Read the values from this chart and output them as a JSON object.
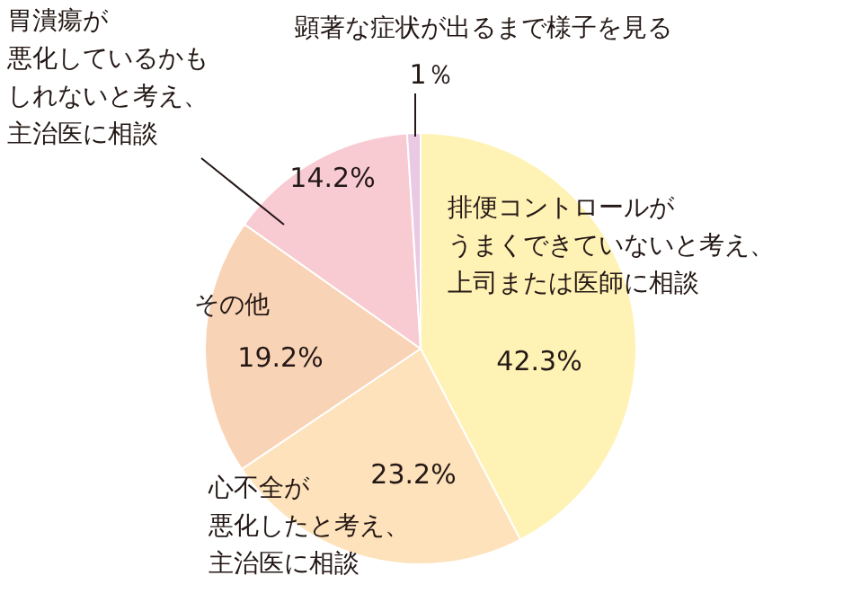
{
  "chart_data": {
    "type": "pie",
    "categories": [
      "排便コントロールがうまくできていないと考え、上司または医師に相談",
      "心不全が悪化したと考え、主治医に相談",
      "その他",
      "胃潰瘍が悪化しているかもしれないと考え、主治医に相談",
      "顕著な症状が出るまで様子を見る"
    ],
    "values": [
      42.3,
      23.2,
      19.2,
      14.2,
      1
    ],
    "value_labels": [
      "42.3%",
      "23.2%",
      "19.2%",
      "14.2%",
      "1％"
    ],
    "colors": [
      "#fff2b5",
      "#fde2bb",
      "#f9d3b6",
      "#f8cbd2",
      "#e9c9e3"
    ]
  }
}
